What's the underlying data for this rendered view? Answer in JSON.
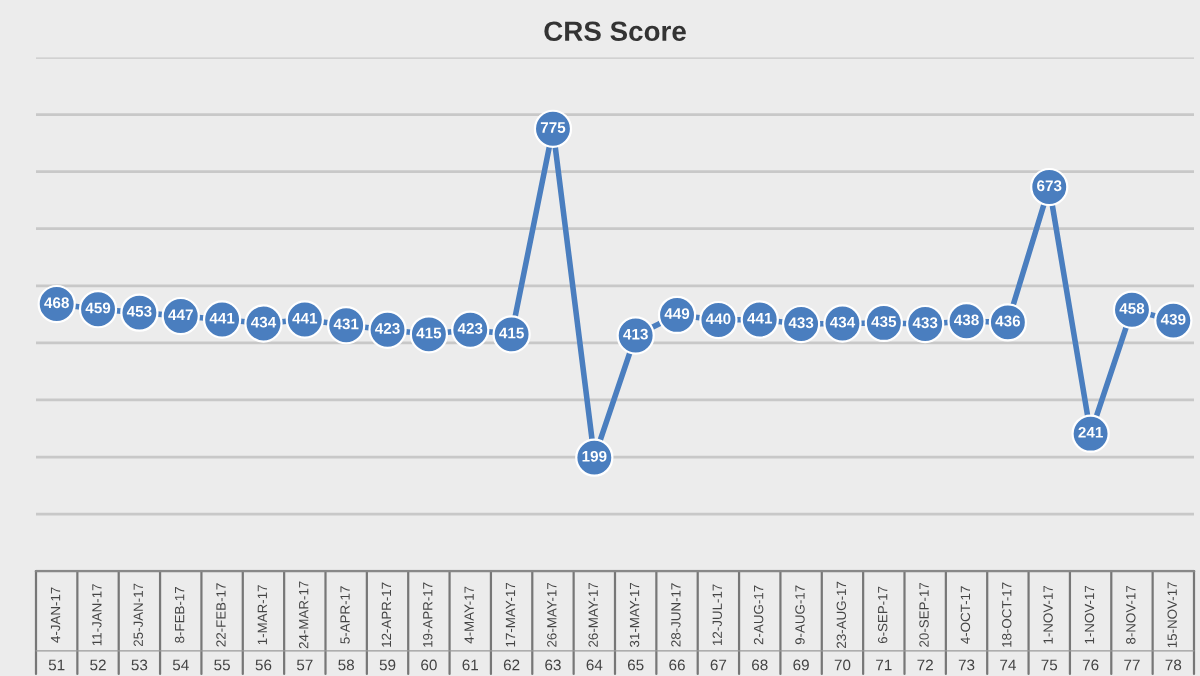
{
  "chart_data": {
    "type": "line",
    "title": "CRS Score",
    "categories": [
      "4-JAN-17\n51",
      "11-JAN-17\n52",
      "25-JAN-17\n53",
      "8-FEB-17\n54",
      "22-FEB-17\n55",
      "1-MAR-17\n56",
      "24-MAR-17\n57",
      "5-APR-17\n58",
      "12-APR-17\n59",
      "19-APR-17\n60",
      "4-MAY-17\n61",
      "17-MAY-17\n62",
      "26-MAY-17\n63",
      "26-MAY-17\n64",
      "31-MAY-17\n65",
      "28-JUN-17\n66",
      "12-JUL-17\n67",
      "2-AUG-17\n68",
      "9-AUG-17\n69",
      "23-AUG-17\n70",
      "6-SEP-17\n71",
      "20-SEP-17\n72",
      "4-OCT-17\n73",
      "18-OCT-17\n74",
      "1-NOV-17\n75",
      "1-NOV-17\n76",
      "8-NOV-17\n77",
      "15-NOV-17\n78"
    ],
    "series": [
      {
        "color": "#4a7ebf",
        "values": [
          468,
          459,
          453,
          447,
          441,
          434,
          441,
          431,
          423,
          415,
          423,
          415,
          775,
          199,
          413,
          449,
          440,
          441,
          433,
          434,
          435,
          433,
          438,
          436,
          673,
          241,
          458,
          439
        ]
      }
    ],
    "ylim": [
      0,
      900
    ],
    "yticks": [
      {
        "value": 0,
        "label": null
      },
      {
        "value": 100,
        "label": null
      },
      {
        "value": 200,
        "label": null
      },
      {
        "value": 300,
        "label": null
      },
      {
        "value": 400,
        "label": null
      },
      {
        "value": 500,
        "label": null
      },
      {
        "value": 600,
        "label": null
      },
      {
        "value": 700,
        "label": null
      },
      {
        "value": 800,
        "label": null
      },
      {
        "value": 900,
        "label": null
      }
    ],
    "grid": "y",
    "marker": "circle",
    "line_style": "solid",
    "data_labels": true,
    "tick_labels": "x"
  }
}
